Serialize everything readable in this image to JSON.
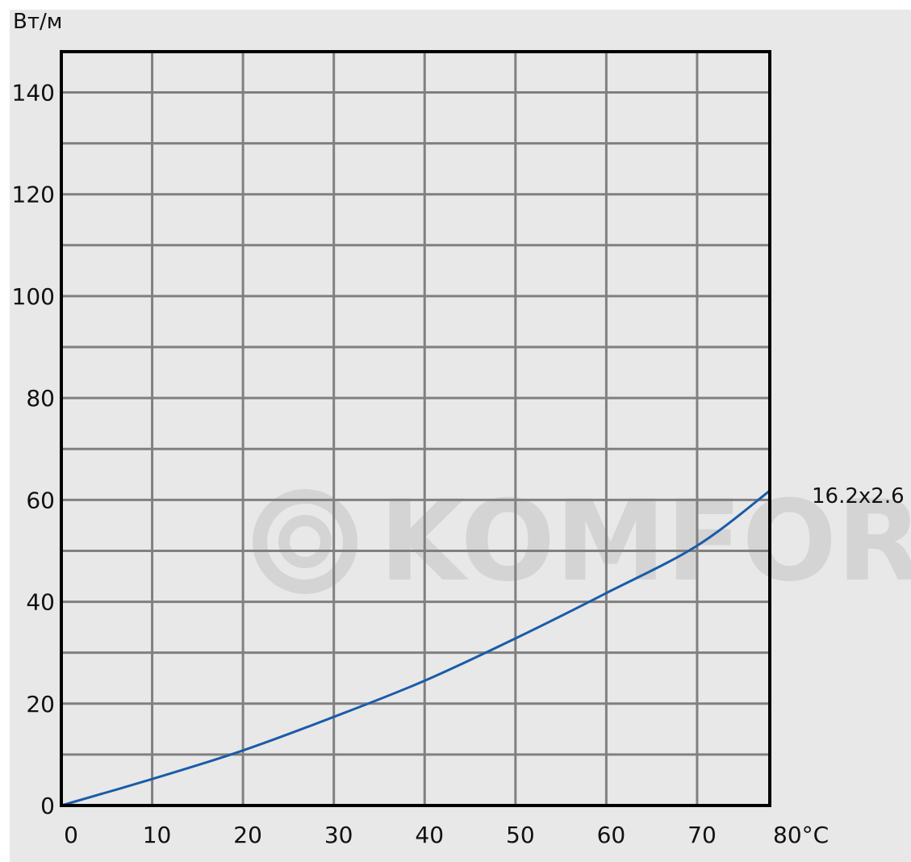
{
  "chart_data": {
    "type": "line",
    "title": "",
    "ylabel": "Вт/м",
    "xlabel": "",
    "x_end_label": "80°C",
    "xlim": [
      0,
      78
    ],
    "ylim": [
      0,
      148
    ],
    "x_ticks": [
      0,
      10,
      20,
      30,
      40,
      50,
      60,
      70
    ],
    "x_tick_labels": [
      "0",
      "10",
      "20",
      "30",
      "40",
      "50",
      "60",
      "70"
    ],
    "y_ticks": [
      0,
      20,
      40,
      60,
      80,
      100,
      120,
      140
    ],
    "y_tick_labels": [
      "0",
      "20",
      "40",
      "60",
      "80",
      "100",
      "120",
      "140"
    ],
    "grid": true,
    "legend": "none",
    "series": [
      {
        "name": "16.2x2.6",
        "color": "#1a5ca8",
        "x": [
          0,
          10,
          20,
          30,
          40,
          50,
          60,
          70,
          78
        ],
        "y": [
          0,
          5.2,
          10.8,
          17.4,
          24.5,
          32.8,
          41.7,
          51.0,
          61.8
        ]
      }
    ],
    "colors": {
      "background": "#e8e8e8",
      "plot_area": "#ffffff",
      "grid": "#808080",
      "frame": "#000000"
    }
  },
  "watermark": {
    "text": "KOMFORT",
    "icon": "komfort-logo-icon"
  }
}
